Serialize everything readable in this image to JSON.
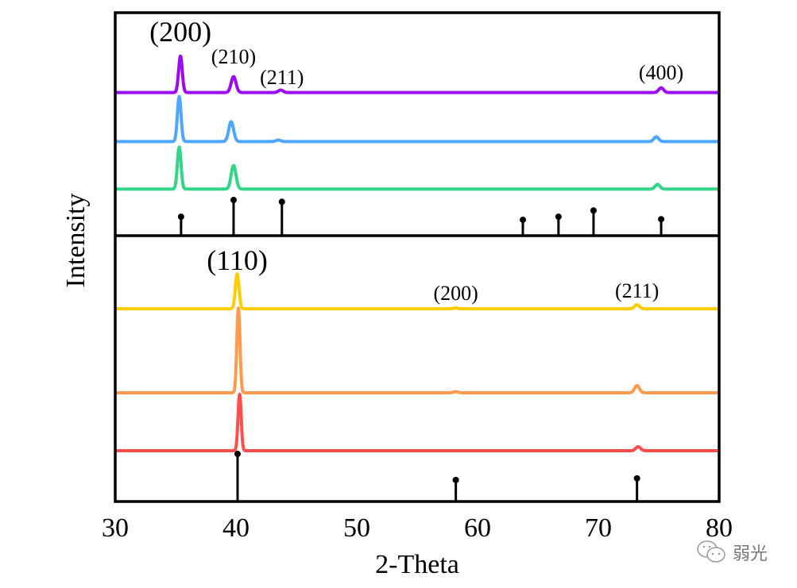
{
  "chart_data": [
    {
      "panel": "top",
      "type": "line",
      "xlabel": "2-Theta",
      "ylabel": "Intensity",
      "xlim": [
        30,
        80
      ],
      "ylim": [
        0,
        100
      ],
      "xticks": [
        "30",
        "40",
        "50",
        "60",
        "70",
        "80"
      ],
      "grid": false,
      "series": [
        {
          "color": "#9B0AF2",
          "baseline": 64.2,
          "peaks": [
            [
              35.4,
              16.3,
              0.15
            ],
            [
              39.8,
              7.1,
              0.2
            ],
            [
              43.7,
              1.1,
              0.2
            ],
            [
              75.2,
              2.1,
              0.2
            ]
          ]
        },
        {
          "color": "#4DA6FF",
          "baseline": 42.2,
          "peaks": [
            [
              35.3,
              20.2,
              0.15
            ],
            [
              39.6,
              8.9,
              0.2
            ],
            [
              43.5,
              0.7,
              0.2
            ],
            [
              74.8,
              2.1,
              0.2
            ]
          ]
        },
        {
          "color": "#33D688",
          "baseline": 20.9,
          "peaks": [
            [
              35.3,
              18.8,
              0.15
            ],
            [
              39.8,
              10.6,
              0.2
            ],
            [
              74.9,
              2.1,
              0.2
            ]
          ]
        }
      ],
      "reference_sticks": [
        [
          35.45,
          8.5
        ],
        [
          39.8,
          16.0
        ],
        [
          43.8,
          15.2
        ],
        [
          63.75,
          7.1
        ],
        [
          66.7,
          8.5
        ],
        [
          69.6,
          11.3
        ],
        [
          75.2,
          7.4
        ]
      ],
      "annotations": [
        {
          "text": "(200)",
          "x": 35.4,
          "size": "large"
        },
        {
          "text": "(210)",
          "x": 39.8,
          "size": "medium"
        },
        {
          "text": "(211)",
          "x": 43.8,
          "size": "medium"
        },
        {
          "text": "(400)",
          "x": 75.2,
          "size": "medium"
        }
      ]
    },
    {
      "panel": "bottom",
      "type": "line",
      "xlim": [
        30,
        80
      ],
      "ylim": [
        0,
        100
      ],
      "grid": false,
      "series": [
        {
          "color": "#FFCC00",
          "baseline": 72.5,
          "peaks": [
            [
              40.1,
              13.1,
              0.15
            ],
            [
              58.2,
              0.3,
              0.2
            ],
            [
              73.2,
              1.5,
              0.2
            ]
          ]
        },
        {
          "color": "#FF9A4D",
          "baseline": 40.9,
          "peaks": [
            [
              40.2,
              31.9,
              0.13
            ],
            [
              58.2,
              0.4,
              0.2
            ],
            [
              73.2,
              2.7,
              0.2
            ]
          ]
        },
        {
          "color": "#FF4D4D",
          "baseline": 19.1,
          "peaks": [
            [
              40.3,
              21.2,
              0.13
            ],
            [
              73.3,
              1.5,
              0.2
            ]
          ]
        }
      ],
      "reference_sticks": [
        [
          40.13,
          17.9
        ],
        [
          58.2,
          8.1
        ],
        [
          73.2,
          8.7
        ]
      ],
      "annotations": [
        {
          "text": "(110)",
          "x": 40.1,
          "size": "large"
        },
        {
          "text": "(200)",
          "x": 58.2,
          "size": "medium"
        },
        {
          "text": "(211)",
          "x": 73.2,
          "size": "medium"
        }
      ]
    }
  ],
  "watermark": {
    "text": "弱光",
    "icon": "wechat-icon"
  }
}
